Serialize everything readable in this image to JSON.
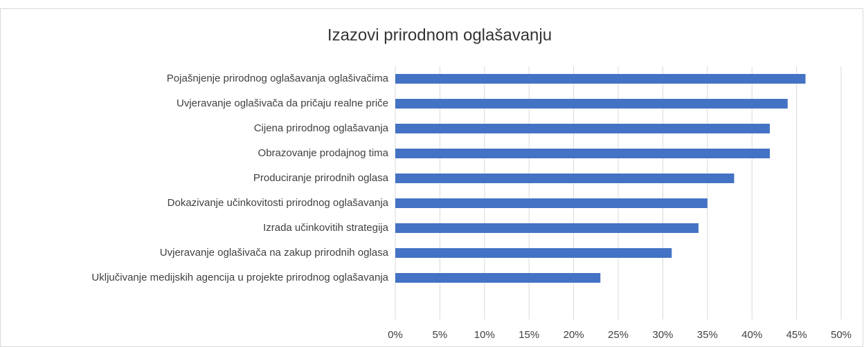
{
  "chart_data": {
    "type": "bar",
    "orientation": "horizontal",
    "title": "Izazovi prirodnom oglašavanju",
    "categories": [
      "Pojašnjenje prirodnog oglašavanja oglašivačima",
      "Uvjeravanje oglašivača da pričaju realne priče",
      "Cijena prirodnog oglašavanja",
      "Obrazovanje prodajnog tima",
      "Produciranje prirodnih oglasa",
      "Dokazivanje učinkovitosti prirodnog oglašavanja",
      "Izrada učinkovitih strategija",
      "Uvjeravanje oglašivača na zakup prirodnih oglasa",
      "Uključivanje medijskih agencija u projekte prirodnog oglašavanja"
    ],
    "values": [
      46,
      44,
      42,
      42,
      38,
      35,
      34,
      31,
      23
    ],
    "color": "#4472c4",
    "xlim": [
      0,
      50
    ],
    "xticks": [
      {
        "value": 0,
        "label": "0%"
      },
      {
        "value": 5,
        "label": "5%"
      },
      {
        "value": 10,
        "label": "10%"
      },
      {
        "value": 15,
        "label": "15%"
      },
      {
        "value": 20,
        "label": "20%"
      },
      {
        "value": 25,
        "label": "25%"
      },
      {
        "value": 30,
        "label": "30%"
      },
      {
        "value": 35,
        "label": "35%"
      },
      {
        "value": 40,
        "label": "40%"
      },
      {
        "value": 45,
        "label": "45%"
      },
      {
        "value": 50,
        "label": "50%"
      }
    ],
    "grid": true
  }
}
